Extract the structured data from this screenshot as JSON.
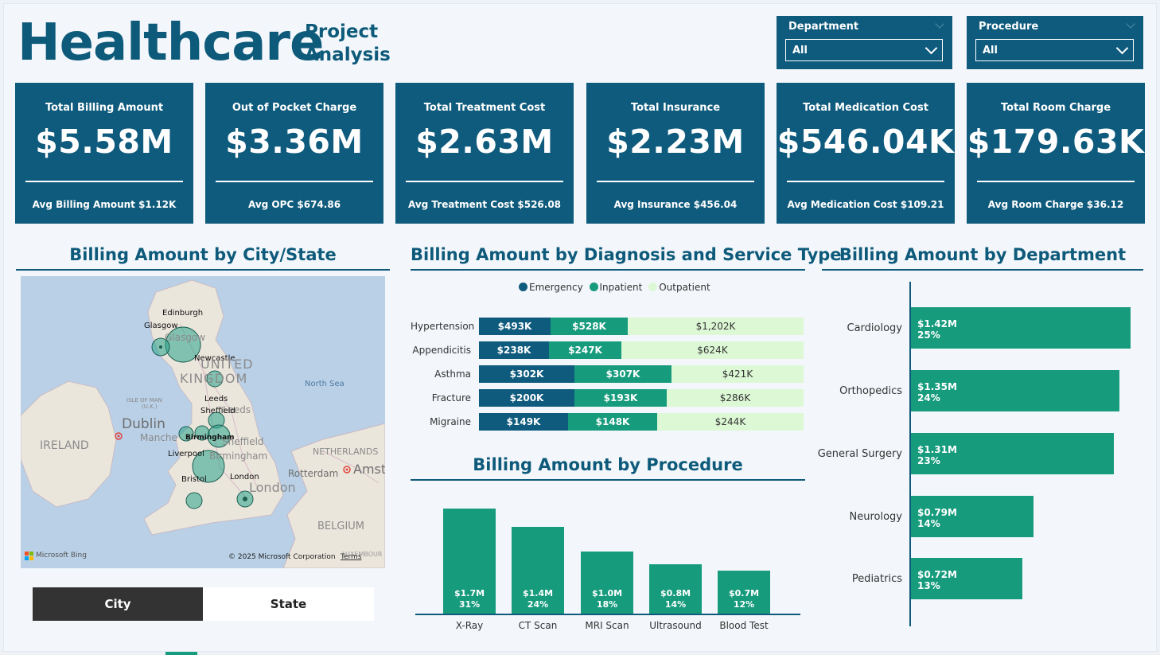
{
  "header": {
    "title": "Healthcare",
    "subtitle_line1": "Project",
    "subtitle_line2": "Analysis"
  },
  "slicers": {
    "department": {
      "label": "Department",
      "value": "All"
    },
    "procedure": {
      "label": "Procedure",
      "value": "All"
    }
  },
  "kpis": [
    {
      "title": "Total Billing Amount",
      "value": "$5.58M",
      "sub": "Avg Billing Amount $1.12K"
    },
    {
      "title": "Out of Pocket Charge",
      "value": "$3.36M",
      "sub": "Avg OPC $674.86"
    },
    {
      "title": "Total Treatment Cost",
      "value": "$2.63M",
      "sub": "Avg Treatment Cost $526.08"
    },
    {
      "title": "Total Insurance",
      "value": "$2.23M",
      "sub": "Avg Insurance $456.04"
    },
    {
      "title": "Total Medication Cost",
      "value": "$546.04K",
      "sub": "Avg Medication Cost $109.21"
    },
    {
      "title": "Total Room Charge",
      "value": "$179.63K",
      "sub": "Avg Room Charge $36.12"
    }
  ],
  "map_section": {
    "title": "Billing Amount by City/State",
    "labels": {
      "edinburgh": "Edinburgh",
      "glasgow": "Glasgow",
      "glasgow_map": "Glasgow",
      "newcastle": "Newcastle",
      "united": "UNITED",
      "kingdom": "KINGDOM",
      "north_sea": "North Sea",
      "isle_of_man": "ISLE OF MAN",
      "isle_uk": "(U.K.)",
      "leeds": "Leeds",
      "leeds_map": "Leeds",
      "sheffield": "Sheffield",
      "sheffield_map": "Sheffield",
      "dublin": "Dublin",
      "ireland": "IRELAND",
      "manchester_map": "Manche",
      "birmingham": "Birmingham",
      "birmingham_map": "Birmingham",
      "liverpool": "Liverpool",
      "netherlands": "NETHERLANDS",
      "rotterdam": "Rotterdam",
      "amsterdam": "Amst",
      "bristol": "Bristol",
      "london": "London",
      "london_map": "London",
      "belgium": "BELGIUM",
      "luxembourg": "LUXEMBOUR",
      "bing": "Microsoft Bing",
      "copyright": "© 2025 Microsoft Corporation",
      "terms": "Terms"
    },
    "toggle": {
      "city": "City",
      "state": "State"
    }
  },
  "diagnosis_section": {
    "title": "Billing Amount by Diagnosis and Service Type",
    "legend": [
      "Emergency",
      "Inpatient",
      "Outpatient"
    ]
  },
  "procedure_section": {
    "title": "Billing Amount by Procedure"
  },
  "department_section": {
    "title": "Billing Amount by Department"
  },
  "colors": {
    "primary": "#0f5b7d",
    "teal": "#179b7d",
    "light_green": "#dcf8d5",
    "emergency": "#0f5b7d",
    "inpatient": "#179b7d",
    "outpatient": "#dcf8d5"
  },
  "chart_data": [
    {
      "type": "bar",
      "orientation": "horizontal-stacked",
      "title": "Billing Amount by Diagnosis and Service Type",
      "categories": [
        "Hypertension",
        "Appendicitis",
        "Asthma",
        "Fracture",
        "Migraine"
      ],
      "series": [
        {
          "name": "Emergency",
          "values": [
            493,
            238,
            302,
            200,
            149
          ],
          "labels": [
            "$493K",
            "$238K",
            "$302K",
            "$200K",
            "$149K"
          ]
        },
        {
          "name": "Inpatient",
          "values": [
            528,
            247,
            307,
            193,
            148
          ],
          "labels": [
            "$528K",
            "$247K",
            "$307K",
            "$193K",
            "$148K"
          ]
        },
        {
          "name": "Outpatient",
          "values": [
            1202,
            624,
            421,
            286,
            244
          ],
          "labels": [
            "$1,202K",
            "$624K",
            "$421K",
            "$286K",
            "$244K"
          ]
        }
      ],
      "unit": "thousand USD",
      "legend": "top"
    },
    {
      "type": "bar",
      "title": "Billing Amount by Procedure",
      "categories": [
        "X-Ray",
        "CT Scan",
        "MRI Scan",
        "Ultrasound",
        "Blood Test"
      ],
      "values": [
        1.7,
        1.4,
        1.0,
        0.8,
        0.7
      ],
      "value_labels": [
        "$1.7M",
        "$1.4M",
        "$1.0M",
        "$0.8M",
        "$0.7M"
      ],
      "percent_labels": [
        "31%",
        "24%",
        "18%",
        "14%",
        "12%"
      ],
      "unit": "million USD"
    },
    {
      "type": "bar",
      "orientation": "horizontal",
      "title": "Billing Amount by Department",
      "categories": [
        "Cardiology",
        "Orthopedics",
        "General Surgery",
        "Neurology",
        "Pediatrics"
      ],
      "values": [
        1.42,
        1.35,
        1.31,
        0.79,
        0.72
      ],
      "value_labels": [
        "$1.42M",
        "$1.35M",
        "$1.31M",
        "$0.79M",
        "$0.72M"
      ],
      "percent_labels": [
        "25%",
        "24%",
        "23%",
        "14%",
        "13%"
      ],
      "unit": "million USD"
    }
  ]
}
